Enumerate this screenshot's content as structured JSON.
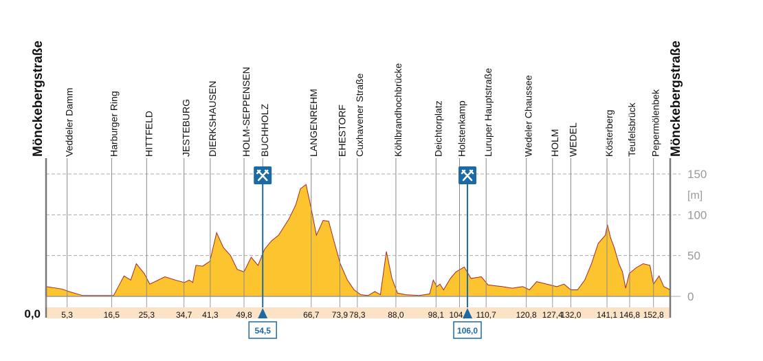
{
  "chart_data": {
    "type": "area",
    "xlim": [
      0,
      157
    ],
    "ylim": [
      0,
      150
    ],
    "yticks": [
      0,
      50,
      100,
      150
    ],
    "y_unit": "[m]",
    "grid": true,
    "xticks": [
      {
        "value": 0,
        "label": "0,0"
      },
      {
        "value": 5.3,
        "label": "5,3"
      },
      {
        "value": 16.5,
        "label": "16,5"
      },
      {
        "value": 25.3,
        "label": "25,3"
      },
      {
        "value": 34.7,
        "label": "34,7"
      },
      {
        "value": 41.3,
        "label": "41,3"
      },
      {
        "value": 49.8,
        "label": "49,8"
      },
      {
        "value": 66.7,
        "label": "66,7"
      },
      {
        "value": 73.9,
        "label": "73,9"
      },
      {
        "value": 78.3,
        "label": "78,3"
      },
      {
        "value": 88.0,
        "label": "88,0"
      },
      {
        "value": 98.1,
        "label": "98,1"
      },
      {
        "value": 104.0,
        "label": "104,0"
      },
      {
        "value": 110.7,
        "label": "110,7"
      },
      {
        "value": 120.8,
        "label": "120,8"
      },
      {
        "value": 127.4,
        "label": "127,4"
      },
      {
        "value": 132.0,
        "label": "132,0"
      },
      {
        "value": 141.1,
        "label": "141,1"
      },
      {
        "value": 146.8,
        "label": "146,8"
      },
      {
        "value": 152.8,
        "label": "152,8"
      }
    ],
    "places": [
      {
        "name": "Mönckebergstraße",
        "x": 0,
        "main": true
      },
      {
        "name": "Veddeler Damm",
        "x": 5.3
      },
      {
        "name": "Harburger Ring",
        "x": 16.5
      },
      {
        "name": "HITTFELD",
        "x": 25.3
      },
      {
        "name": "JESTEBURG",
        "x": 34.7
      },
      {
        "name": "DIERKSHAUSEN",
        "x": 41.3
      },
      {
        "name": "HOLM-SEPPENSEN",
        "x": 49.8
      },
      {
        "name": "BUCHHOLZ",
        "x": 54.5
      },
      {
        "name": "LANGENREHM",
        "x": 66.7
      },
      {
        "name": "EHESTORF",
        "x": 73.9
      },
      {
        "name": "Cuxhavener Straße",
        "x": 78.3
      },
      {
        "name": "Köhlbrandhochbrücke",
        "x": 88.0
      },
      {
        "name": "Deichtorplatz",
        "x": 98.1
      },
      {
        "name": "Holstenkamp",
        "x": 104.0
      },
      {
        "name": "Luruper Hauptstraße",
        "x": 110.7
      },
      {
        "name": "Wedeler Chaussee",
        "x": 120.8
      },
      {
        "name": "HOLM",
        "x": 127.4
      },
      {
        "name": "WEDEL",
        "x": 132.0
      },
      {
        "name": "Kösterberg",
        "x": 141.1
      },
      {
        "name": "Teufelsbrück",
        "x": 146.8
      },
      {
        "name": "Pepermölenbek",
        "x": 152.8
      },
      {
        "name": "Mönckebergstraße",
        "x": 157,
        "main": true
      }
    ],
    "markers": [
      {
        "x": 54.5,
        "label": "54,5"
      },
      {
        "x": 106.0,
        "label": "106,0"
      }
    ],
    "color": "#fcc52f",
    "line_color": "#a3272b",
    "marker_color": "#1b6aa5",
    "x": [
      0,
      4.0,
      5.7,
      9.2,
      14.4,
      17.0,
      19.6,
      21.3,
      22.7,
      24.7,
      26.1,
      29.9,
      32.5,
      34.8,
      36.0,
      36.9,
      37.7,
      39.4,
      41.2,
      42.9,
      44.6,
      46.4,
      48.1,
      49.8,
      51.6,
      53.3,
      55.0,
      56.7,
      58.5,
      61.1,
      62.8,
      64.0,
      65.4,
      66.6,
      68.0,
      69.7,
      71.1,
      72.3,
      74.0,
      75.8,
      77.5,
      79.2,
      81.0,
      82.7,
      84.1,
      85.6,
      87.0,
      88.4,
      90.5,
      93.9,
      96.5,
      97.4,
      98.3,
      99.1,
      100.0,
      101.7,
      103.1,
      105.2,
      106.9,
      109.5,
      111.2,
      114.7,
      117.3,
      119.9,
      121.6,
      123.4,
      125.1,
      126.8,
      128.5,
      130.3,
      132.0,
      133.7,
      135.5,
      137.2,
      138.9,
      140.7,
      141.2,
      142.0,
      142.9,
      144.1,
      145.0,
      145.8,
      146.7,
      148.4,
      150.2,
      151.9,
      152.8,
      154.2,
      155.4,
      157
    ],
    "values": [
      12,
      9,
      6,
      1,
      1,
      1,
      25,
      20,
      40,
      28,
      15,
      24,
      20,
      17,
      20,
      17,
      38,
      37,
      43,
      78,
      60,
      50,
      33,
      30,
      48,
      38,
      58,
      68,
      75,
      95,
      112,
      132,
      137,
      110,
      75,
      93,
      92,
      70,
      40,
      20,
      8,
      2,
      1,
      6,
      2,
      55,
      22,
      4,
      2,
      1,
      3,
      20,
      12,
      15,
      8,
      22,
      30,
      36,
      22,
      24,
      14,
      12,
      10,
      12,
      8,
      18,
      16,
      14,
      12,
      15,
      8,
      8,
      20,
      40,
      65,
      75,
      88,
      72,
      60,
      40,
      30,
      10,
      28,
      35,
      40,
      38,
      15,
      25,
      12,
      8
    ]
  }
}
